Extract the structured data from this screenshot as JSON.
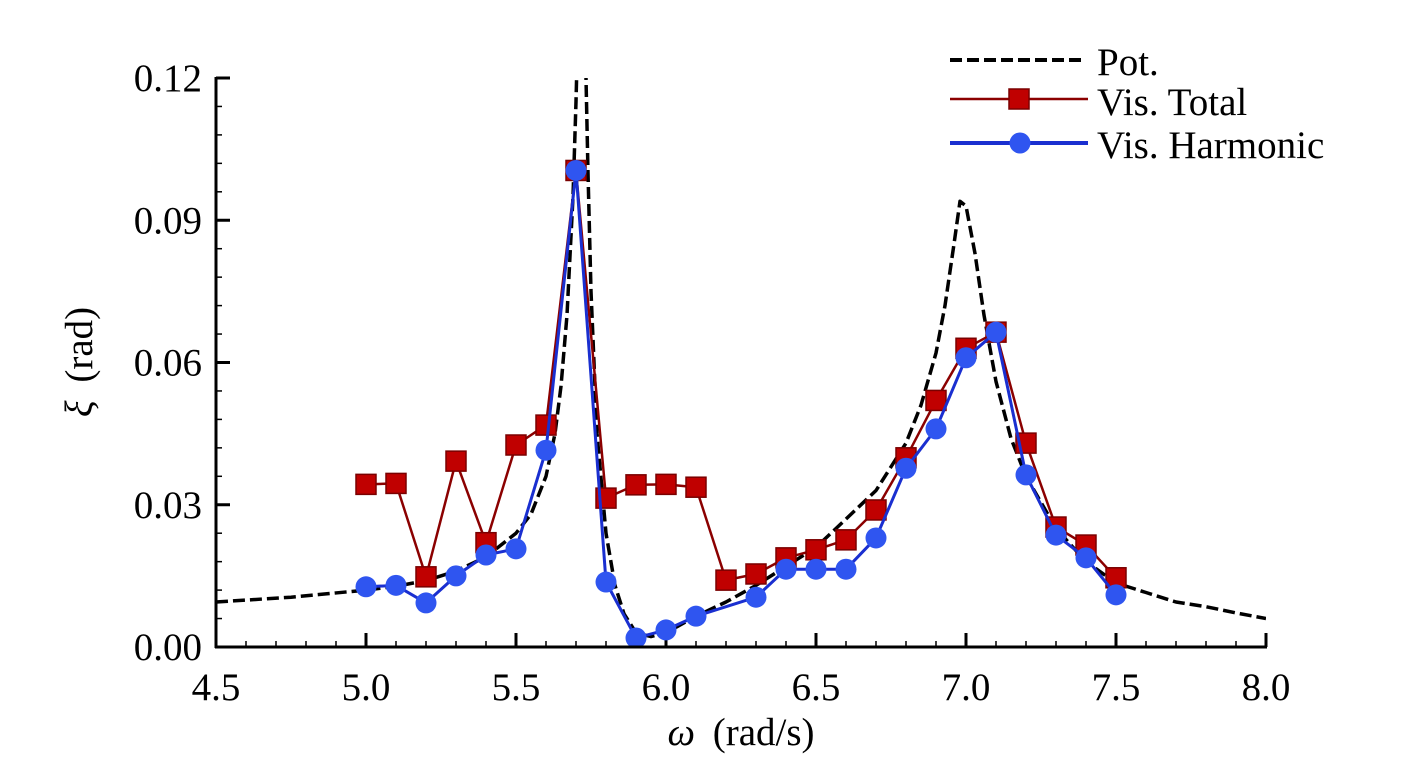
{
  "chart_data": {
    "type": "line",
    "title": "",
    "xlabel_symbol": "ω",
    "xlabel_unit": "(rad/s)",
    "ylabel_symbol": "ξ",
    "ylabel_unit": "(rad)",
    "xlim": [
      4.5,
      8.0
    ],
    "ylim": [
      0.0,
      0.12
    ],
    "x_ticks": [
      4.5,
      5.0,
      5.5,
      6.0,
      6.5,
      7.0,
      7.5,
      8.0
    ],
    "x_tick_labels": [
      "4.5",
      "5.0",
      "5.5",
      "6.0",
      "6.5",
      "7.0",
      "7.5",
      "8.0"
    ],
    "y_ticks": [
      0.0,
      0.03,
      0.06,
      0.09,
      0.12
    ],
    "y_tick_labels": [
      "0.00",
      "0.03",
      "0.06",
      "0.09",
      "0.12"
    ],
    "x_minor_step": 0.1,
    "y_minor_step": 0.006,
    "grid": false,
    "legend_position": "top-right",
    "series": [
      {
        "name": "Pot.",
        "style": "dashed",
        "marker": "none",
        "color": "#000000",
        "x": [
          4.5,
          4.75,
          5.0,
          5.1,
          5.2,
          5.3,
          5.4,
          5.5,
          5.55,
          5.6,
          5.63,
          5.65,
          5.67,
          5.69,
          5.7,
          5.71,
          5.72,
          5.73,
          5.74,
          5.75,
          5.77,
          5.8,
          5.83,
          5.86,
          5.9,
          5.95,
          6.0,
          6.1,
          6.2,
          6.3,
          6.4,
          6.5,
          6.6,
          6.7,
          6.8,
          6.85,
          6.9,
          6.93,
          6.96,
          6.98,
          7.0,
          7.03,
          7.06,
          7.1,
          7.15,
          7.2,
          7.3,
          7.4,
          7.5,
          7.6,
          7.7,
          7.8,
          7.9,
          8.0
        ],
        "y": [
          0.0095,
          0.0105,
          0.012,
          0.0128,
          0.014,
          0.016,
          0.019,
          0.024,
          0.028,
          0.036,
          0.045,
          0.055,
          0.07,
          0.095,
          0.115,
          0.14,
          0.15,
          0.13,
          0.1,
          0.075,
          0.045,
          0.024,
          0.013,
          0.007,
          0.003,
          0.0022,
          0.003,
          0.0065,
          0.0095,
          0.013,
          0.017,
          0.021,
          0.027,
          0.033,
          0.043,
          0.051,
          0.062,
          0.072,
          0.085,
          0.094,
          0.093,
          0.083,
          0.07,
          0.056,
          0.044,
          0.036,
          0.025,
          0.018,
          0.0135,
          0.0115,
          0.0095,
          0.0085,
          0.0072,
          0.006
        ]
      },
      {
        "name": "Vis. Total",
        "style": "solid",
        "marker": "square",
        "color": "#c00000",
        "line_color": "#8b0000",
        "x": [
          5.0,
          5.1,
          5.2,
          5.3,
          5.4,
          5.5,
          5.6,
          5.7,
          5.8,
          5.9,
          6.0,
          6.1,
          6.2,
          6.3,
          6.4,
          6.5,
          6.6,
          6.7,
          6.8,
          6.9,
          7.0,
          7.1,
          7.2,
          7.3,
          7.4,
          7.5
        ],
        "y": [
          0.0343,
          0.0345,
          0.0148,
          0.0392,
          0.022,
          0.0426,
          0.0468,
          0.1005,
          0.0314,
          0.0342,
          0.0343,
          0.0337,
          0.0141,
          0.0154,
          0.0188,
          0.0205,
          0.0226,
          0.0289,
          0.0399,
          0.052,
          0.063,
          0.0664,
          0.043,
          0.0253,
          0.0215,
          0.0146
        ]
      },
      {
        "name": "Vis. Harmonic",
        "style": "solid",
        "marker": "circle",
        "color": "#2f55f0",
        "line_color": "#1a2fd0",
        "x": [
          5.0,
          5.1,
          5.2,
          5.3,
          5.4,
          5.5,
          5.6,
          5.7,
          5.8,
          5.9,
          6.0,
          6.1,
          6.3,
          6.4,
          6.5,
          6.6,
          6.7,
          6.8,
          6.9,
          7.0,
          7.1,
          7.2,
          7.3,
          7.4,
          7.5
        ],
        "y": [
          0.0127,
          0.013,
          0.0093,
          0.015,
          0.0194,
          0.0207,
          0.0415,
          0.1005,
          0.0137,
          0.0019,
          0.0036,
          0.0065,
          0.0105,
          0.0164,
          0.0164,
          0.0164,
          0.023,
          0.0377,
          0.046,
          0.061,
          0.0664,
          0.0363,
          0.0236,
          0.0188,
          0.011
        ]
      }
    ]
  }
}
